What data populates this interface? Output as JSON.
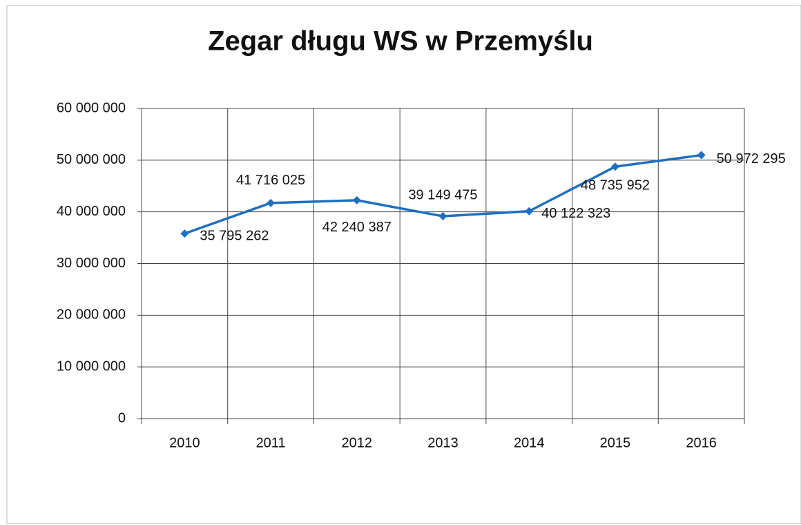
{
  "chart_data": {
    "type": "line",
    "title": "Zegar długu WS w Przemyślu",
    "categories": [
      "2010",
      "2011",
      "2012",
      "2013",
      "2014",
      "2015",
      "2016"
    ],
    "series": [
      {
        "name": "Zegar długu",
        "color": "#1f6fc0",
        "values": [
          35795262,
          41716025,
          42240387,
          39149475,
          40122323,
          48735952,
          50972295
        ],
        "value_labels": [
          "35 795 262",
          "41 716 025",
          "42 240 387",
          "39 149 475",
          "40 122 323",
          "48 735 952",
          "50 972 295"
        ]
      }
    ],
    "ylim": [
      0,
      60000000
    ],
    "yticks": [
      0,
      {
        "value": 10000000,
        "label": "10 000 000"
      },
      {
        "value": 20000000,
        "label": "20 000 000"
      },
      {
        "value": 30000000,
        "label": "30 000 000"
      },
      {
        "value": 40000000,
        "label": "40 000 000"
      },
      {
        "value": 50000000,
        "label": "50 000 000"
      },
      {
        "value": 60000000,
        "label": "60 000 000"
      }
    ],
    "grid": true
  }
}
